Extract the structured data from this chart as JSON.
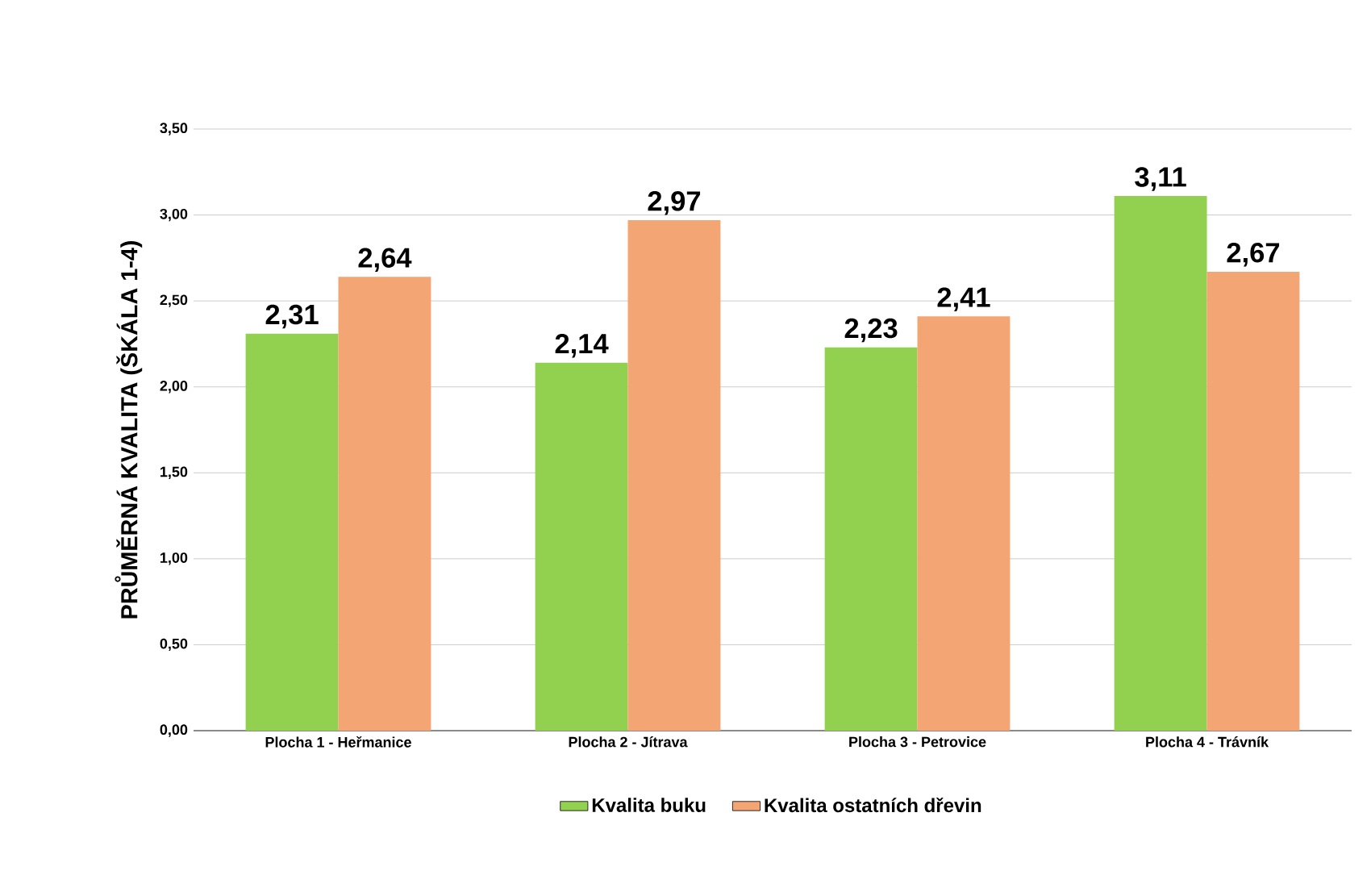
{
  "chart_data": {
    "type": "bar",
    "ylabel": "PRŮMĚRNÁ KVALITA (ŠKÁLA 1-4)",
    "categories": [
      "Plocha  1 - Heřmanice",
      "Plocha  2 - Jítrava",
      "Plocha  3 - Petrovice",
      "Plocha  4 - Trávník"
    ],
    "series": [
      {
        "name": "Kvalita buku",
        "color": "#92d050",
        "values": [
          2.31,
          2.14,
          2.23,
          3.11
        ],
        "value_labels": [
          "2,31",
          "2,14",
          "2,23",
          "3,11"
        ]
      },
      {
        "name": "Kvalita ostatních dřevin",
        "color": "#f4a574",
        "values": [
          2.64,
          2.97,
          2.41,
          2.67
        ],
        "value_labels": [
          "2,64",
          "2,97",
          "2,41",
          "2,67"
        ]
      }
    ],
    "ylim": [
      0,
      3.5
    ],
    "yticks": [
      {
        "value": 0,
        "label": "0,00"
      },
      {
        "value": 0.5,
        "label": "0,50"
      },
      {
        "value": 1,
        "label": "1,00"
      },
      {
        "value": 1.5,
        "label": "1,50"
      },
      {
        "value": 2,
        "label": "2,00"
      },
      {
        "value": 2.5,
        "label": "2,50"
      },
      {
        "value": 3,
        "label": "3,00"
      },
      {
        "value": 3.5,
        "label": "3,50"
      }
    ],
    "grid": "y",
    "legend": "bottom"
  }
}
